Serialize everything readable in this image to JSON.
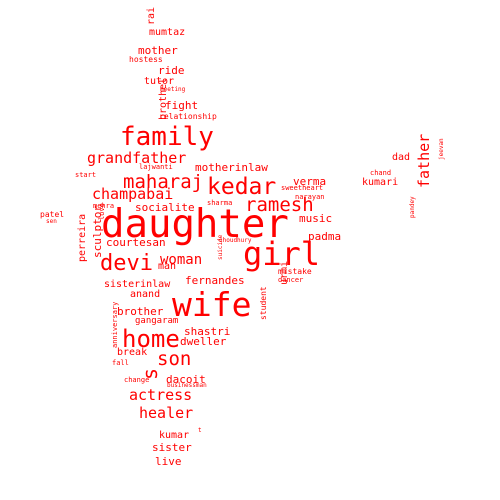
{
  "cloud": {
    "color": "#ff0000",
    "words": [
      {
        "text": "daughter",
        "rotate": false
      },
      {
        "text": "wife",
        "rotate": false
      },
      {
        "text": "girl",
        "rotate": false
      },
      {
        "text": "family",
        "rotate": false
      },
      {
        "text": "home",
        "rotate": false
      },
      {
        "text": "kedar",
        "rotate": false
      },
      {
        "text": "devi",
        "rotate": false
      },
      {
        "text": "maharaj",
        "rotate": false
      },
      {
        "text": "ramesh",
        "rotate": false
      },
      {
        "text": "son",
        "rotate": false
      },
      {
        "text": "grandfather",
        "rotate": false
      },
      {
        "text": "champabai",
        "rotate": false
      },
      {
        "text": "woman",
        "rotate": false
      },
      {
        "text": "actress",
        "rotate": false
      },
      {
        "text": "healer",
        "rotate": false
      },
      {
        "text": "father",
        "rotate": true
      },
      {
        "text": "s",
        "rotate": true
      },
      {
        "text": "socialite",
        "rotate": false
      },
      {
        "text": "motherinlaw",
        "rotate": false
      },
      {
        "text": "courtesan",
        "rotate": false
      },
      {
        "text": "verma",
        "rotate": false
      },
      {
        "text": "music",
        "rotate": false
      },
      {
        "text": "padma",
        "rotate": false
      },
      {
        "text": "fernandes",
        "rotate": false
      },
      {
        "text": "sisterinlaw",
        "rotate": false
      },
      {
        "text": "brother",
        "rotate": false
      },
      {
        "text": "shastri",
        "rotate": false
      },
      {
        "text": "dweller",
        "rotate": false
      },
      {
        "text": "anand",
        "rotate": false
      },
      {
        "text": "break",
        "rotate": false
      },
      {
        "text": "dacoit",
        "rotate": false
      },
      {
        "text": "kumar",
        "rotate": false
      },
      {
        "text": "sister",
        "rotate": false
      },
      {
        "text": "live",
        "rotate": false
      },
      {
        "text": "fight",
        "rotate": false
      },
      {
        "text": "ride",
        "rotate": false
      },
      {
        "text": "mother",
        "rotate": false
      },
      {
        "text": "mumtaz",
        "rotate": false
      },
      {
        "text": "tutor",
        "rotate": false
      },
      {
        "text": "kumari",
        "rotate": false
      },
      {
        "text": "dad",
        "rotate": false
      },
      {
        "text": "urmi",
        "rotate": true
      },
      {
        "text": "brothel",
        "rotate": true
      },
      {
        "text": "sculptor",
        "rotate": true
      },
      {
        "text": "perreira",
        "rotate": true
      },
      {
        "text": "man",
        "rotate": false
      },
      {
        "text": "gangaram",
        "rotate": false
      },
      {
        "text": "rai",
        "rotate": true
      },
      {
        "text": "hostess",
        "rotate": false
      },
      {
        "text": "relationship",
        "rotate": false
      },
      {
        "text": "meeting",
        "rotate": false
      },
      {
        "text": "lajwanti",
        "rotate": false
      },
      {
        "text": "start",
        "rotate": false
      },
      {
        "text": "patel",
        "rotate": false
      },
      {
        "text": "sen",
        "rotate": false
      },
      {
        "text": "mehra",
        "rotate": false
      },
      {
        "text": "love",
        "rotate": true
      },
      {
        "text": "sweetheart",
        "rotate": false
      },
      {
        "text": "narayan",
        "rotate": false
      },
      {
        "text": "sharma",
        "rotate": false
      },
      {
        "text": "choudhury",
        "rotate": false
      },
      {
        "text": "suicide",
        "rotate": true
      },
      {
        "text": "mistake",
        "rotate": false
      },
      {
        "text": "dancer",
        "rotate": false
      },
      {
        "text": "student",
        "rotate": true
      },
      {
        "text": "anniversary",
        "rotate": true
      },
      {
        "text": "fall",
        "rotate": false
      },
      {
        "text": "change",
        "rotate": false
      },
      {
        "text": "businessman",
        "rotate": false
      },
      {
        "text": "chand",
        "rotate": false
      },
      {
        "text": "jeevan",
        "rotate": true
      },
      {
        "text": "pandey",
        "rotate": true
      },
      {
        "text": "t",
        "rotate": false
      }
    ]
  }
}
